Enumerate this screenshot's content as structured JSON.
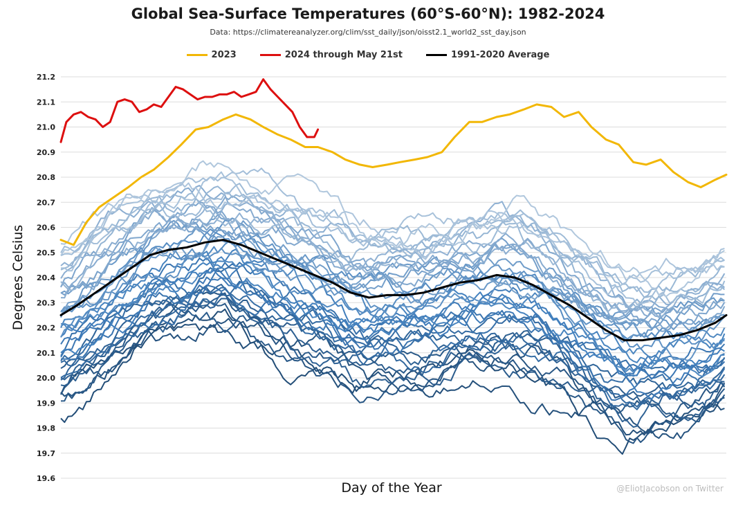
{
  "chart_data": {
    "type": "line",
    "title": "Global Sea-Surface Temperatures (60°S-60°N): 1982-2024",
    "subtitle": "Data: https://climatereanalyzer.org/clim/sst_daily/json/oisst2.1_world2_sst_day.json",
    "xlabel": "Day of the Year",
    "ylabel": "Degrees Celsius",
    "xlim": [
      1,
      366
    ],
    "ylim": [
      19.6,
      21.2
    ],
    "yticks": [
      "19.6",
      "19.7",
      "19.8",
      "19.9",
      "20.0",
      "20.1",
      "20.2",
      "20.3",
      "20.4",
      "20.5",
      "20.6",
      "20.7",
      "20.8",
      "20.9",
      "21.0",
      "21.1",
      "21.2"
    ],
    "grid": true,
    "legend_position": "top",
    "legend": [
      {
        "label": "2023",
        "color": "#f2b705"
      },
      {
        "label": "2024 through May 21st",
        "color": "#dd0f0f"
      },
      {
        "label": "1991-2020 Average",
        "color": "#000000"
      }
    ],
    "series": [
      {
        "name": "2023",
        "color": "#f2b705",
        "x": [
          1,
          8,
          15,
          22,
          30,
          38,
          45,
          52,
          60,
          67,
          75,
          82,
          90,
          97,
          105,
          112,
          120,
          127,
          135,
          142,
          150,
          157,
          165,
          172,
          180,
          187,
          195,
          202,
          210,
          217,
          225,
          232,
          240,
          247,
          255,
          262,
          270,
          277,
          285,
          292,
          300,
          307,
          315,
          322,
          330,
          337,
          345,
          352,
          360,
          366
        ],
        "y": [
          20.55,
          20.53,
          20.62,
          20.68,
          20.72,
          20.76,
          20.8,
          20.83,
          20.88,
          20.93,
          20.99,
          21.0,
          21.03,
          21.05,
          21.03,
          21.0,
          20.97,
          20.95,
          20.92,
          20.92,
          20.9,
          20.87,
          20.85,
          20.84,
          20.85,
          20.86,
          20.87,
          20.88,
          20.9,
          20.96,
          21.02,
          21.02,
          21.04,
          21.05,
          21.07,
          21.09,
          21.08,
          21.04,
          21.06,
          21.0,
          20.95,
          20.93,
          20.86,
          20.85,
          20.87,
          20.82,
          20.78,
          20.76,
          20.79,
          20.81
        ]
      },
      {
        "name": "2024 through May 21st",
        "color": "#dd0f0f",
        "x": [
          1,
          4,
          8,
          12,
          16,
          20,
          24,
          28,
          32,
          36,
          40,
          44,
          48,
          52,
          56,
          60,
          64,
          68,
          72,
          76,
          80,
          84,
          88,
          92,
          96,
          100,
          104,
          108,
          112,
          116,
          120,
          124,
          128,
          132,
          136,
          140,
          142
        ],
        "y": [
          20.94,
          21.02,
          21.05,
          21.06,
          21.04,
          21.03,
          21.0,
          21.02,
          21.1,
          21.11,
          21.1,
          21.06,
          21.07,
          21.09,
          21.08,
          21.12,
          21.16,
          21.15,
          21.13,
          21.11,
          21.12,
          21.12,
          21.13,
          21.13,
          21.14,
          21.12,
          21.13,
          21.14,
          21.19,
          21.15,
          21.12,
          21.09,
          21.06,
          21.0,
          20.96,
          20.96,
          20.99
        ]
      },
      {
        "name": "1991-2020 Average",
        "color": "#000000",
        "x": [
          1,
          10,
          20,
          30,
          40,
          50,
          60,
          70,
          80,
          90,
          100,
          110,
          120,
          130,
          140,
          150,
          160,
          170,
          180,
          190,
          200,
          210,
          220,
          230,
          240,
          250,
          260,
          270,
          280,
          290,
          300,
          310,
          320,
          330,
          340,
          350,
          360,
          366
        ],
        "y": [
          20.25,
          20.29,
          20.34,
          20.39,
          20.44,
          20.49,
          20.51,
          20.52,
          20.54,
          20.55,
          20.53,
          20.5,
          20.47,
          20.44,
          20.41,
          20.38,
          20.34,
          20.32,
          20.33,
          20.33,
          20.34,
          20.36,
          20.38,
          20.39,
          20.41,
          20.4,
          20.37,
          20.33,
          20.29,
          20.24,
          20.19,
          20.15,
          20.15,
          20.16,
          20.17,
          20.19,
          20.22,
          20.25
        ]
      }
    ]
  },
  "credit": "@EliotJacobson on Twitter"
}
